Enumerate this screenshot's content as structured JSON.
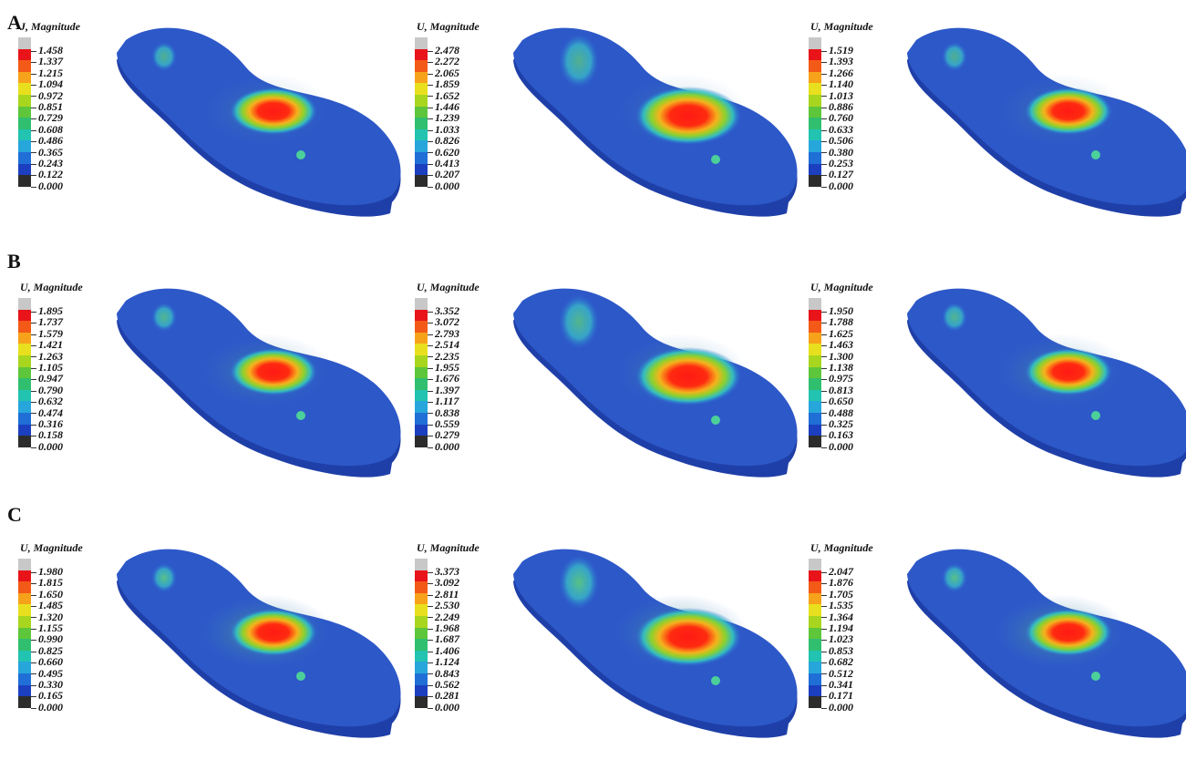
{
  "rows": [
    {
      "label": "A",
      "panels": [
        {
          "title": "J, Magnitude",
          "ticks": [
            "1.458",
            "1.337",
            "1.215",
            "1.094",
            "0.972",
            "0.851",
            "0.729",
            "0.608",
            "0.486",
            "0.365",
            "0.243",
            "0.122",
            "0.000"
          ]
        },
        {
          "title": "U, Magnitude",
          "ticks": [
            "2.478",
            "2.272",
            "2.065",
            "1.859",
            "1.652",
            "1.446",
            "1.239",
            "1.033",
            "0.826",
            "0.620",
            "0.413",
            "0.207",
            "0.000"
          ]
        },
        {
          "title": "U, Magnitude",
          "ticks": [
            "1.519",
            "1.393",
            "1.266",
            "1.140",
            "1.013",
            "0.886",
            "0.760",
            "0.633",
            "0.506",
            "0.380",
            "0.253",
            "0.127",
            "0.000"
          ]
        }
      ]
    },
    {
      "label": "B",
      "panels": [
        {
          "title": "U, Magnitude",
          "ticks": [
            "1.895",
            "1.737",
            "1.579",
            "1.421",
            "1.263",
            "1.105",
            "0.947",
            "0.790",
            "0.632",
            "0.474",
            "0.316",
            "0.158",
            "0.000"
          ]
        },
        {
          "title": "U, Magnitude",
          "ticks": [
            "3.352",
            "3.072",
            "2.793",
            "2.514",
            "2.235",
            "1.955",
            "1.676",
            "1.397",
            "1.117",
            "0.838",
            "0.559",
            "0.279",
            "0.000"
          ]
        },
        {
          "title": "U, Magnitude",
          "ticks": [
            "1.950",
            "1.788",
            "1.625",
            "1.463",
            "1.300",
            "1.138",
            "0.975",
            "0.813",
            "0.650",
            "0.488",
            "0.325",
            "0.163",
            "0.000"
          ]
        }
      ]
    },
    {
      "label": "C",
      "panels": [
        {
          "title": "U, Magnitude",
          "ticks": [
            "1.980",
            "1.815",
            "1.650",
            "1.485",
            "1.320",
            "1.155",
            "0.990",
            "0.825",
            "0.660",
            "0.495",
            "0.330",
            "0.165",
            "0.000"
          ]
        },
        {
          "title": "U, Magnitude",
          "ticks": [
            "3.373",
            "3.092",
            "2.811",
            "2.530",
            "2.249",
            "1.968",
            "1.687",
            "1.406",
            "1.124",
            "0.843",
            "0.562",
            "0.281",
            "0.000"
          ]
        },
        {
          "title": "U, Magnitude",
          "ticks": [
            "2.047",
            "1.876",
            "1.705",
            "1.535",
            "1.364",
            "1.194",
            "1.023",
            "0.853",
            "0.682",
            "0.512",
            "0.341",
            "0.171",
            "0.000"
          ]
        }
      ]
    }
  ],
  "colorscale": [
    "#c8c8c8",
    "#e8141a",
    "#f35a17",
    "#f7a21b",
    "#e8e01e",
    "#a8d61f",
    "#5ec63a",
    "#2fbf6f",
    "#22c3b0",
    "#27a6dc",
    "#1f6fd6",
    "#1b3fbf",
    "#2c2c2c"
  ]
}
